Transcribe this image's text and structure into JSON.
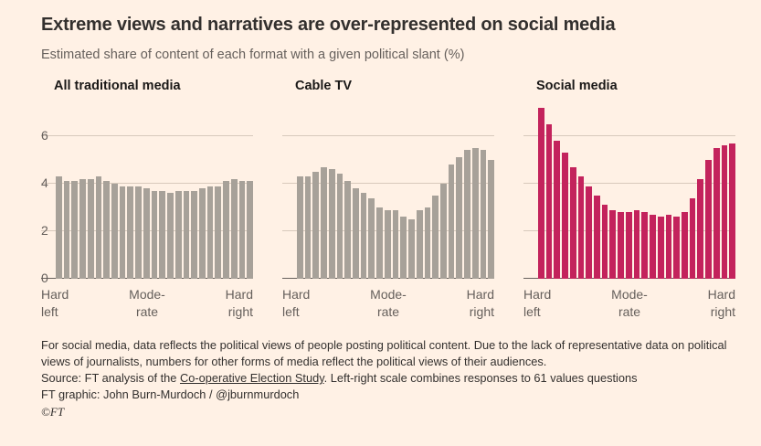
{
  "page": {
    "title": "Extreme views and narratives are over-represented on social media",
    "subtitle": "Estimated share of content of each format with a given political slant (%)"
  },
  "colors": {
    "background": "#FFF1E5",
    "bar_gray": "#A7A199",
    "bar_pink": "#C3235C",
    "grid": "#D8C9BC",
    "axis_line": "#66605C",
    "text_dark": "#33302E",
    "text_muted": "#66605C"
  },
  "axis": {
    "y_ticks": [
      0,
      2,
      4,
      6
    ],
    "y_max": 7.3,
    "x_labels": [
      {
        "line1": "Hard",
        "line2": "left"
      },
      {
        "line1": "Mode-",
        "line2": "rate"
      },
      {
        "line1": "Hard",
        "line2": "right"
      }
    ]
  },
  "chart_data": [
    {
      "type": "bar",
      "title": "All traditional media",
      "xlabel": "Political slant (Hard left to Hard right)",
      "ylabel": "Share of content (%)",
      "ylim": [
        0,
        7.3
      ],
      "color_key": "bar_gray",
      "values": [
        4.3,
        4.1,
        4.1,
        4.2,
        4.2,
        4.3,
        4.1,
        4.0,
        3.9,
        3.9,
        3.9,
        3.8,
        3.7,
        3.7,
        3.6,
        3.7,
        3.7,
        3.7,
        3.8,
        3.9,
        3.9,
        4.1,
        4.2,
        4.1,
        4.1
      ]
    },
    {
      "type": "bar",
      "title": "Cable TV",
      "xlabel": "Political slant (Hard left to Hard right)",
      "ylabel": "Share of content (%)",
      "ylim": [
        0,
        7.3
      ],
      "color_key": "bar_gray",
      "values": [
        4.3,
        4.3,
        4.5,
        4.7,
        4.6,
        4.4,
        4.1,
        3.8,
        3.6,
        3.4,
        3.0,
        2.9,
        2.9,
        2.6,
        2.5,
        2.9,
        3.0,
        3.5,
        4.0,
        4.8,
        5.1,
        5.4,
        5.5,
        5.4,
        5.0
      ]
    },
    {
      "type": "bar",
      "title": "Social media",
      "xlabel": "Political slant (Hard left to Hard right)",
      "ylabel": "Share of content (%)",
      "ylim": [
        0,
        7.3
      ],
      "color_key": "bar_pink",
      "values": [
        7.2,
        6.5,
        5.8,
        5.3,
        4.7,
        4.3,
        3.9,
        3.5,
        3.1,
        2.9,
        2.8,
        2.8,
        2.9,
        2.8,
        2.7,
        2.6,
        2.7,
        2.6,
        2.8,
        3.4,
        4.2,
        5.0,
        5.5,
        5.6,
        5.7
      ]
    }
  ],
  "footer": {
    "note": "For social media, data reflects the political views of people posting political content. Due to the lack of representative data on political views of journalists, numbers for other forms of media reflect the political views of their audiences.",
    "source_prefix": "Source: FT analysis of the ",
    "source_link": "Co-operative Election Study",
    "source_suffix": ". Left-right scale combines responses to 61 values questions",
    "credit": "FT graphic: John Burn-Murdoch / @jburnmurdoch",
    "copyright": "©FT"
  }
}
